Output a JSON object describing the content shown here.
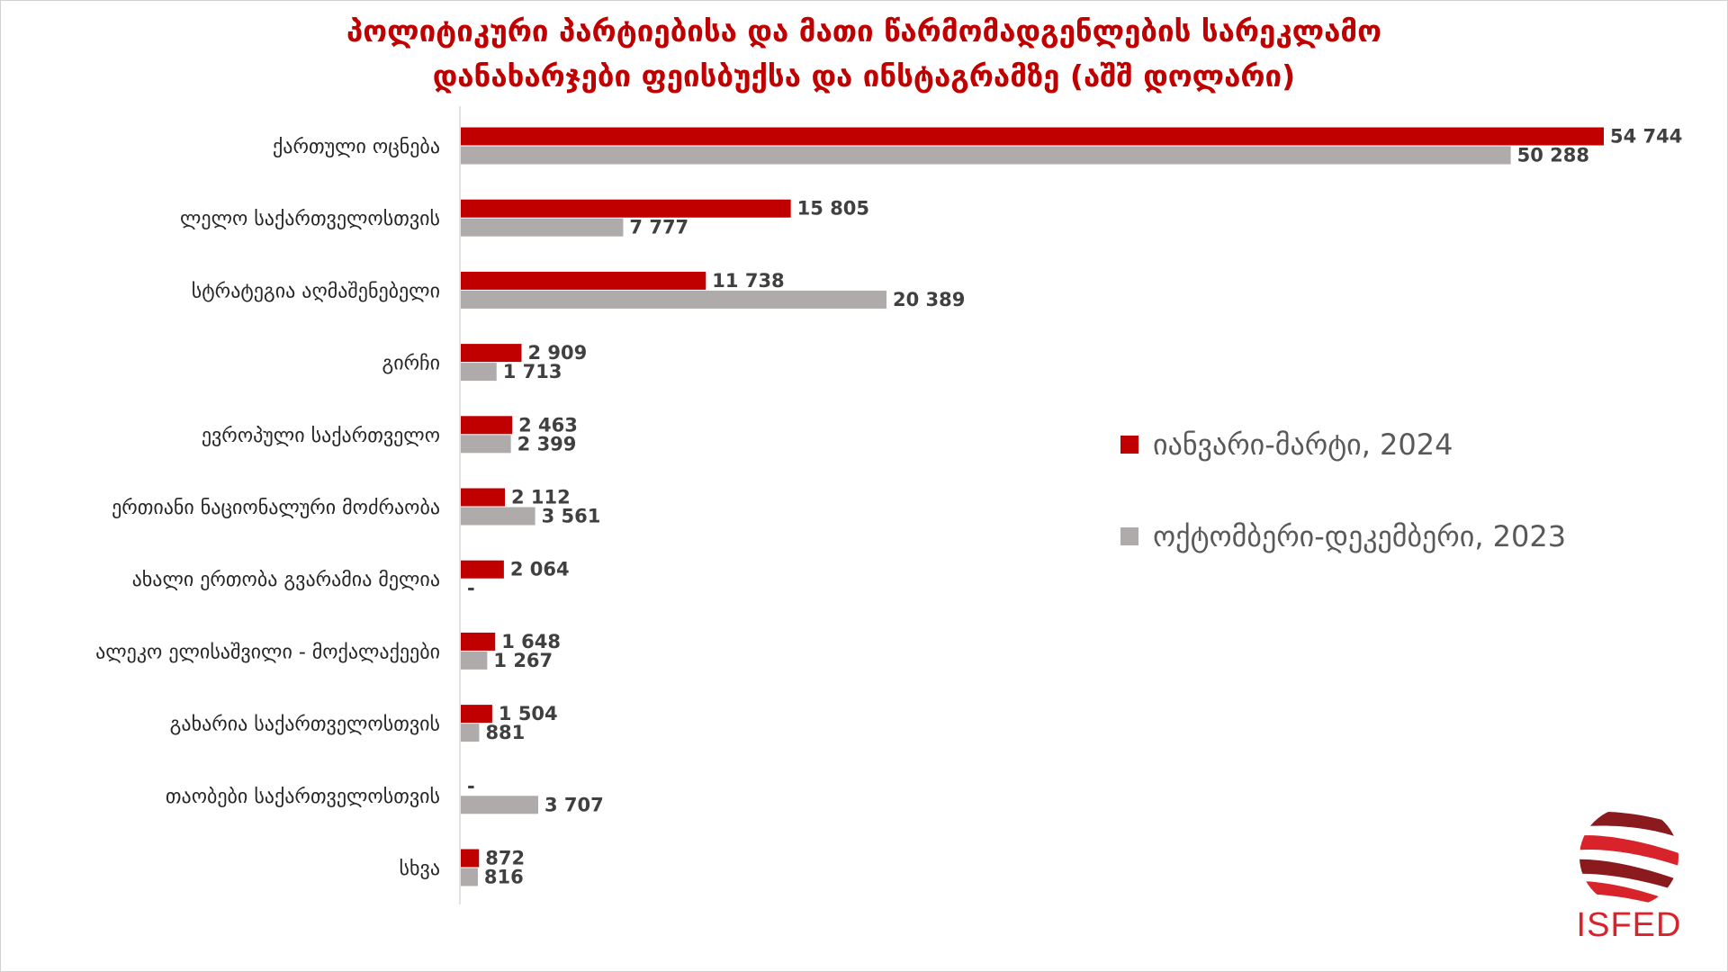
{
  "chart_data": {
    "type": "bar",
    "orientation": "horizontal",
    "title": [
      "პოლიტიკური პარტიებისა და მათი წარმომადგენლების სარეკლამო",
      "დანახარჯები ფეისბუქსა და ინსტაგრამზე (აშშ დოლარი)"
    ],
    "categories": [
      "ქართული ოცნება",
      "ლელო საქართველოსთვის",
      "სტრატეგია აღმაშენებელი",
      "გირჩი",
      "ევროპული საქართველო",
      "ერთიანი ნაციონალური მოძრაობა",
      "ახალი ერთობა გვარამია მელია",
      "ალეკო ელისაშვილი - მოქალაქეები",
      "გახარია საქართველოსთვის",
      "თაობები საქართველოსთვის",
      "სხვა"
    ],
    "series": [
      {
        "name": "იანვარი-მარტი, 2024",
        "color": "#c00000",
        "values": [
          54744,
          15805,
          11738,
          2909,
          2463,
          2112,
          2064,
          1648,
          1504,
          0,
          872
        ],
        "labels": [
          "54 744",
          "15 805",
          "11 738",
          "2 909",
          "2 463",
          "2 112",
          "2 064",
          "1 648",
          "1 504",
          "-",
          "872"
        ]
      },
      {
        "name": "ოქტომბერი-დეკემბერი, 2023",
        "color": "#afabab",
        "values": [
          50288,
          7777,
          20389,
          1713,
          2399,
          3561,
          0,
          1267,
          881,
          3707,
          816
        ],
        "labels": [
          "50 288",
          "7 777",
          "20 389",
          "1 713",
          "2 399",
          "3 561",
          "-",
          "1 267",
          "881",
          "3 707",
          "816"
        ]
      }
    ],
    "xlim": [
      0,
      54744
    ],
    "grid": false,
    "legend": "right"
  },
  "logo": {
    "text": "ISFED"
  }
}
